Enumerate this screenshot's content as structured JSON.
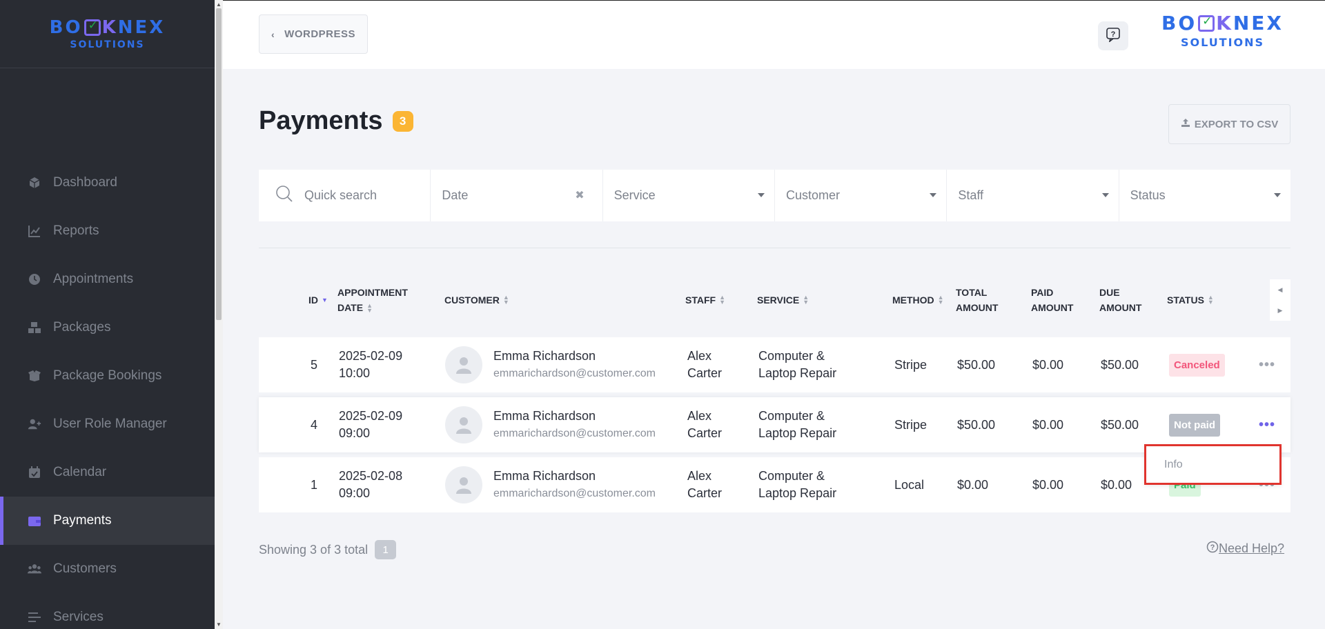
{
  "logo": {
    "top": "BOKNEX",
    "top_left": "BO",
    "top_right": "NEX",
    "k": "K",
    "bottom": "SOLUTIONS"
  },
  "sidebar": {
    "items": [
      {
        "label": "Dashboard",
        "icon": "cube-icon"
      },
      {
        "label": "Reports",
        "icon": "chart-line-icon"
      },
      {
        "label": "Appointments",
        "icon": "clock-icon"
      },
      {
        "label": "Packages",
        "icon": "boxes-icon"
      },
      {
        "label": "Package Bookings",
        "icon": "box-open-icon"
      },
      {
        "label": "User Role Manager",
        "icon": "user-plus-icon"
      },
      {
        "label": "Calendar",
        "icon": "calendar-check-icon"
      },
      {
        "label": "Payments",
        "icon": "wallet-icon"
      },
      {
        "label": "Customers",
        "icon": "users-icon"
      },
      {
        "label": "Services",
        "icon": "list-icon"
      }
    ],
    "active": "Payments"
  },
  "topbar": {
    "wordpress_label": "WORDPRESS"
  },
  "page": {
    "title": "Payments",
    "count": "3",
    "export_label": "EXPORT TO CSV"
  },
  "filters": {
    "search_placeholder": "Quick search",
    "date": "Date",
    "service": "Service",
    "customer": "Customer",
    "staff": "Staff",
    "status": "Status"
  },
  "table": {
    "headers": {
      "id": "ID",
      "appointment_date_1": "APPOINTMENT",
      "appointment_date_2": "DATE",
      "customer": "CUSTOMER",
      "staff": "STAFF",
      "service": "SERVICE",
      "method": "METHOD",
      "total_1": "TOTAL",
      "total_2": "AMOUNT",
      "paid_1": "PAID",
      "paid_2": "AMOUNT",
      "due_1": "DUE",
      "due_2": "AMOUNT",
      "status": "STATUS"
    },
    "rows": [
      {
        "id": "5",
        "date": "2025-02-09",
        "time": "10:00",
        "name": "Emma Richardson",
        "email": "emmarichardson@customer.com",
        "staff_first": "Alex",
        "staff_last": "Carter",
        "service_1": "Computer &",
        "service_2": "Laptop Repair",
        "method": "Stripe",
        "total": "$50.00",
        "paid": "$0.00",
        "due": "$50.00",
        "status": "Canceled"
      },
      {
        "id": "4",
        "date": "2025-02-09",
        "time": "09:00",
        "name": "Emma Richardson",
        "email": "emmarichardson@customer.com",
        "staff_first": "Alex",
        "staff_last": "Carter",
        "service_1": "Computer &",
        "service_2": "Laptop Repair",
        "method": "Stripe",
        "total": "$50.00",
        "paid": "$0.00",
        "due": "$50.00",
        "status": "Not paid"
      },
      {
        "id": "1",
        "date": "2025-02-08",
        "time": "09:00",
        "name": "Emma Richardson",
        "email": "emmarichardson@customer.com",
        "staff_first": "Alex",
        "staff_last": "Carter",
        "service_1": "Computer &",
        "service_2": "Laptop Repair",
        "method": "Local",
        "total": "$0.00",
        "paid": "$0.00",
        "due": "$0.00",
        "status": "Paid"
      }
    ]
  },
  "dropdown": {
    "info_label": "Info"
  },
  "footer": {
    "showing": "Showing 3 of 3 total",
    "page": "1",
    "need_help": "Need Help?"
  },
  "colors": {
    "accent": "#7b68ee",
    "canceled": "#f2557a",
    "paid": "#3ac46a",
    "badge": "#fbb534",
    "highlight": "#e0342e"
  }
}
